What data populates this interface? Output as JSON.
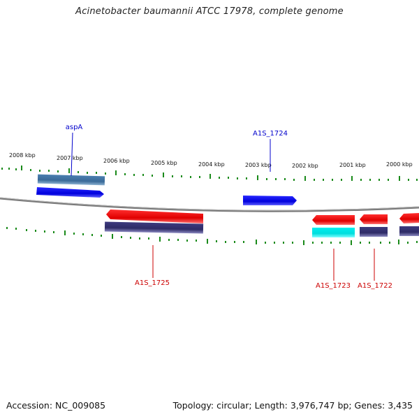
{
  "title": "Acinetobacter baumannii ATCC 17978, complete genome",
  "footer": {
    "accession": "Accession: NC_009085",
    "summary": "Topology: circular; Length: 3,976,747 bp; Genes: 3,435"
  },
  "ruler_labels": [
    "2008 kbp",
    "2007 kbp",
    "2006 kbp",
    "2005 kbp",
    "2004 kbp",
    "2003 kbp",
    "2002 kbp",
    "2001 kbp",
    "2000 kbp"
  ],
  "genes": {
    "aspA": "aspA",
    "A1S_1724": "A1S_1724",
    "A1S_1725": "A1S_1725",
    "A1S_1723": "A1S_1723",
    "A1S_1722": "A1S_1722"
  },
  "colors": {
    "forward_cds": "#0000ee",
    "forward_gene": "#4a7fb0",
    "reverse_cds": "#ee0000",
    "reverse_gene": "#3d3a7e",
    "reverse_rna": "#00eeee",
    "ruler_tick": "#1a8a1a",
    "backbone": "#808080",
    "forward_label": "#0000cc",
    "reverse_label": "#cc0000"
  }
}
